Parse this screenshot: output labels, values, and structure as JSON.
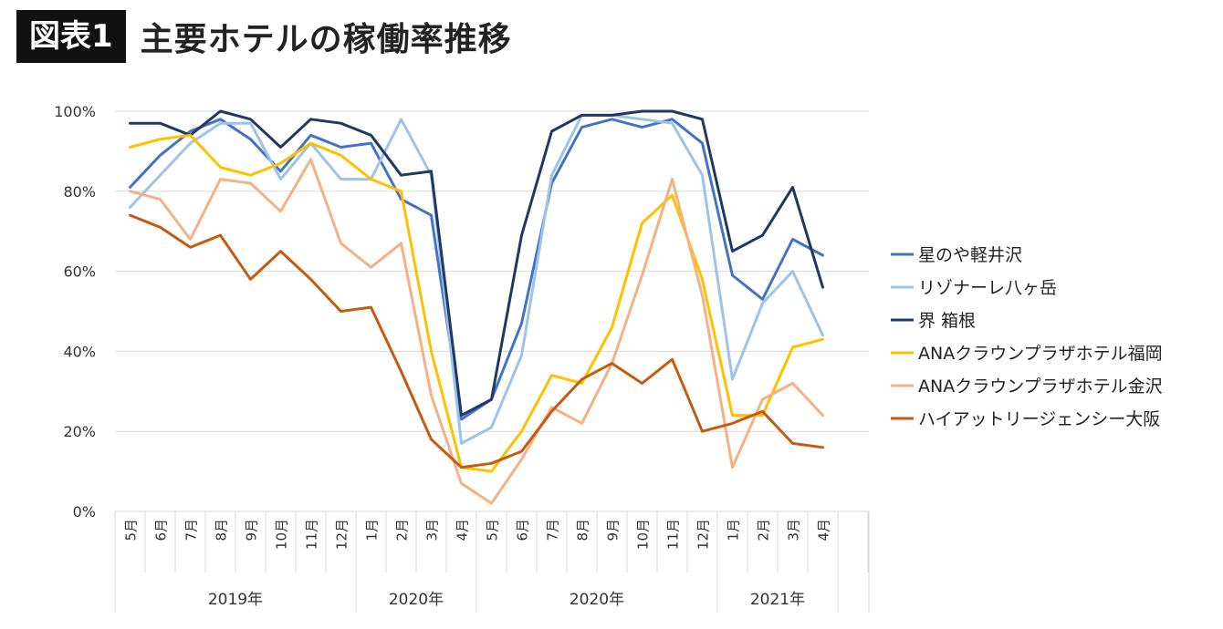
{
  "header": {
    "badge": "図表1",
    "title": "主要ホテルの稼働率推移"
  },
  "chart_data": {
    "type": "line",
    "title": "主要ホテルの稼働率推移",
    "ylim": [
      0,
      100
    ],
    "y_ticks": [
      "0%",
      "20%",
      "40%",
      "60%",
      "80%",
      "100%"
    ],
    "grid": "horizontal",
    "legend_position": "right",
    "categories": [
      "5月",
      "6月",
      "7月",
      "8月",
      "9月",
      "10月",
      "11月",
      "12月",
      "1月",
      "2月",
      "3月",
      "4月",
      "5月",
      "6月",
      "7月",
      "8月",
      "9月",
      "10月",
      "11月",
      "12月",
      "1月",
      "2月",
      "3月",
      "4月"
    ],
    "year_groups": [
      {
        "label": "2019年",
        "count": 8
      },
      {
        "label": "2020年",
        "count": 4
      },
      {
        "label": "2020年",
        "count": 8
      },
      {
        "label": "2021年",
        "count": 4
      }
    ],
    "series": [
      {
        "name": "星のや軽井沢",
        "color": "#4472C4",
        "values": [
          81,
          89,
          95,
          98,
          93,
          85,
          94,
          91,
          92,
          78,
          74,
          23,
          28,
          47,
          82,
          96,
          98,
          96,
          98,
          92,
          59,
          53,
          68,
          64
        ]
      },
      {
        "name": "リゾナーレ八ヶ岳",
        "color": "#9DC3E6",
        "values": [
          76,
          84,
          92,
          97,
          97,
          83,
          92,
          83,
          83,
          98,
          84,
          17,
          21,
          39,
          84,
          99,
          99,
          98,
          97,
          84,
          33,
          52,
          60,
          44
        ]
      },
      {
        "name": "界 箱根",
        "color": "#1F3864",
        "values": [
          97,
          97,
          94,
          100,
          98,
          91,
          98,
          97,
          94,
          84,
          85,
          24,
          28,
          69,
          95,
          99,
          99,
          100,
          100,
          98,
          65,
          69,
          81,
          56
        ]
      },
      {
        "name": "ANAクラウンプラザホテル福岡",
        "color": "#FFC000",
        "values": [
          91,
          93,
          94,
          86,
          84,
          87,
          92,
          89,
          83,
          80,
          40,
          11,
          10,
          20,
          34,
          32,
          46,
          72,
          79,
          58,
          24,
          24,
          41,
          43
        ]
      },
      {
        "name": "ANAクラウンプラザホテル金沢",
        "color": "#F4B183",
        "values": [
          80,
          78,
          68,
          83,
          82,
          75,
          88,
          67,
          61,
          67,
          29,
          7,
          2,
          13,
          26,
          22,
          37,
          59,
          83,
          54,
          11,
          28,
          32,
          24
        ]
      },
      {
        "name": "ハイアットリージェンシー大阪",
        "color": "#C55A11",
        "values": [
          74,
          71,
          66,
          69,
          58,
          65,
          58,
          50,
          51,
          35,
          18,
          11,
          12,
          15,
          25,
          33,
          37,
          32,
          38,
          20,
          22,
          25,
          17,
          16
        ]
      }
    ]
  }
}
